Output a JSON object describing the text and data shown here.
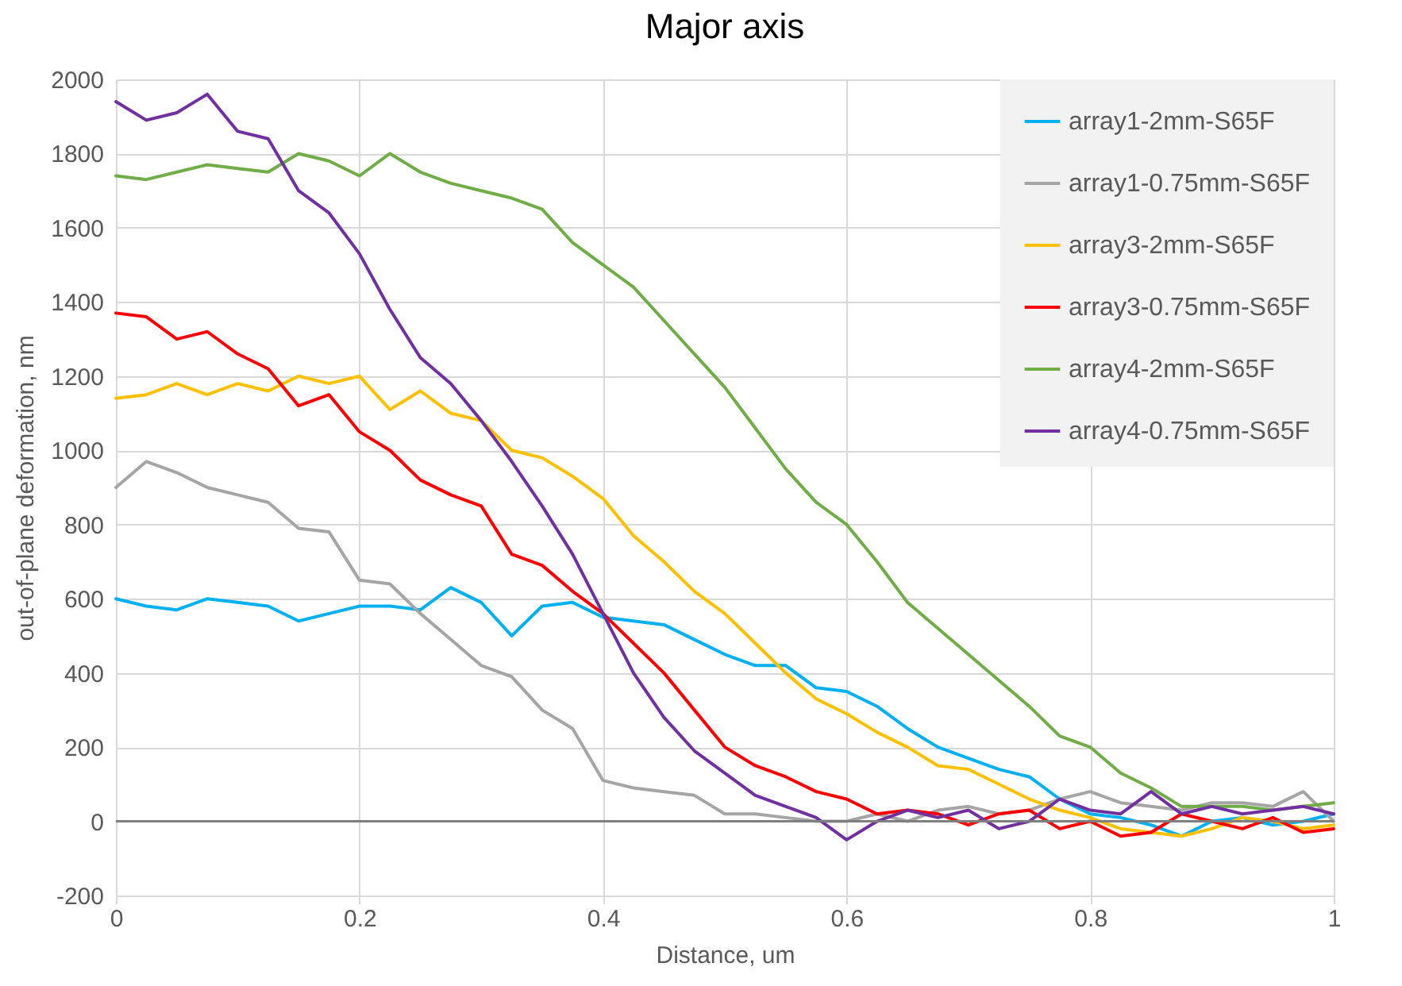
{
  "chart_data": {
    "type": "line",
    "title": "Major axis",
    "xlabel": "Distance, um",
    "ylabel": "out-of-plane deformation, nm",
    "x": [
      0,
      0.025,
      0.05,
      0.075,
      0.1,
      0.125,
      0.15,
      0.175,
      0.2,
      0.225,
      0.25,
      0.275,
      0.3,
      0.325,
      0.35,
      0.375,
      0.4,
      0.425,
      0.45,
      0.475,
      0.5,
      0.525,
      0.55,
      0.575,
      0.6,
      0.625,
      0.65,
      0.675,
      0.7,
      0.725,
      0.75,
      0.775,
      0.8,
      0.825,
      0.85,
      0.875,
      0.9,
      0.925,
      0.95,
      0.975,
      1
    ],
    "series": [
      {
        "name": "array1-2mm-S65F",
        "color": "#00b0f0",
        "values": [
          600,
          580,
          570,
          600,
          590,
          580,
          540,
          560,
          580,
          580,
          570,
          630,
          590,
          500,
          580,
          590,
          550,
          540,
          530,
          490,
          450,
          420,
          420,
          360,
          350,
          310,
          250,
          200,
          170,
          140,
          120,
          60,
          20,
          10,
          -10,
          -40,
          0,
          10,
          -10,
          0,
          20
        ]
      },
      {
        "name": "array1-0.75mm-S65F",
        "color": "#a5a5a5",
        "values": [
          900,
          970,
          940,
          900,
          880,
          860,
          790,
          780,
          650,
          640,
          560,
          490,
          420,
          390,
          300,
          250,
          110,
          90,
          80,
          70,
          20,
          20,
          10,
          0,
          0,
          20,
          0,
          30,
          40,
          20,
          30,
          60,
          80,
          50,
          40,
          30,
          50,
          50,
          40,
          80,
          0
        ]
      },
      {
        "name": "array3-2mm-S65F",
        "color": "#ffc000",
        "values": [
          1140,
          1150,
          1180,
          1150,
          1180,
          1160,
          1200,
          1180,
          1200,
          1110,
          1160,
          1100,
          1080,
          1000,
          980,
          930,
          870,
          770,
          700,
          620,
          560,
          480,
          400,
          330,
          290,
          240,
          200,
          150,
          140,
          100,
          60,
          30,
          10,
          -20,
          -30,
          -40,
          -20,
          10,
          0,
          -20,
          -10
        ]
      },
      {
        "name": "array3-0.75mm-S65F",
        "color": "#ff0000",
        "values": [
          1370,
          1360,
          1300,
          1320,
          1260,
          1220,
          1120,
          1150,
          1050,
          1000,
          920,
          880,
          850,
          720,
          690,
          620,
          560,
          480,
          400,
          300,
          200,
          150,
          120,
          80,
          60,
          20,
          30,
          20,
          -10,
          20,
          30,
          -20,
          0,
          -40,
          -30,
          20,
          0,
          -20,
          10,
          -30,
          -20
        ]
      },
      {
        "name": "array4-2mm-S65F",
        "color": "#70ad47",
        "values": [
          1740,
          1730,
          1750,
          1770,
          1760,
          1750,
          1800,
          1780,
          1740,
          1800,
          1750,
          1720,
          1700,
          1680,
          1650,
          1560,
          1500,
          1440,
          1350,
          1260,
          1170,
          1060,
          950,
          860,
          800,
          700,
          590,
          520,
          450,
          380,
          310,
          230,
          200,
          130,
          90,
          40,
          40,
          40,
          30,
          40,
          50
        ]
      },
      {
        "name": "array4-0.75mm-S65F",
        "color": "#7030a0",
        "values": [
          1940,
          1890,
          1910,
          1960,
          1860,
          1840,
          1700,
          1640,
          1530,
          1380,
          1250,
          1180,
          1080,
          970,
          850,
          720,
          560,
          400,
          280,
          190,
          130,
          70,
          40,
          10,
          -50,
          0,
          30,
          10,
          30,
          -20,
          0,
          60,
          30,
          20,
          80,
          20,
          40,
          20,
          30,
          40,
          20
        ]
      }
    ],
    "xlim": [
      0,
      1
    ],
    "xticks": [
      0,
      0.2,
      0.4,
      0.6,
      0.8,
      1
    ],
    "ylim": [
      -200,
      2000
    ],
    "yticks": [
      -200,
      0,
      200,
      400,
      600,
      800,
      1000,
      1200,
      1400,
      1600,
      1800,
      2000
    ],
    "ref_lines": [
      {
        "axis": "y",
        "value": 0,
        "color": "#7f7f7f"
      }
    ],
    "grid": true,
    "legend": "top right",
    "marker": "none",
    "line_style": "solid"
  }
}
